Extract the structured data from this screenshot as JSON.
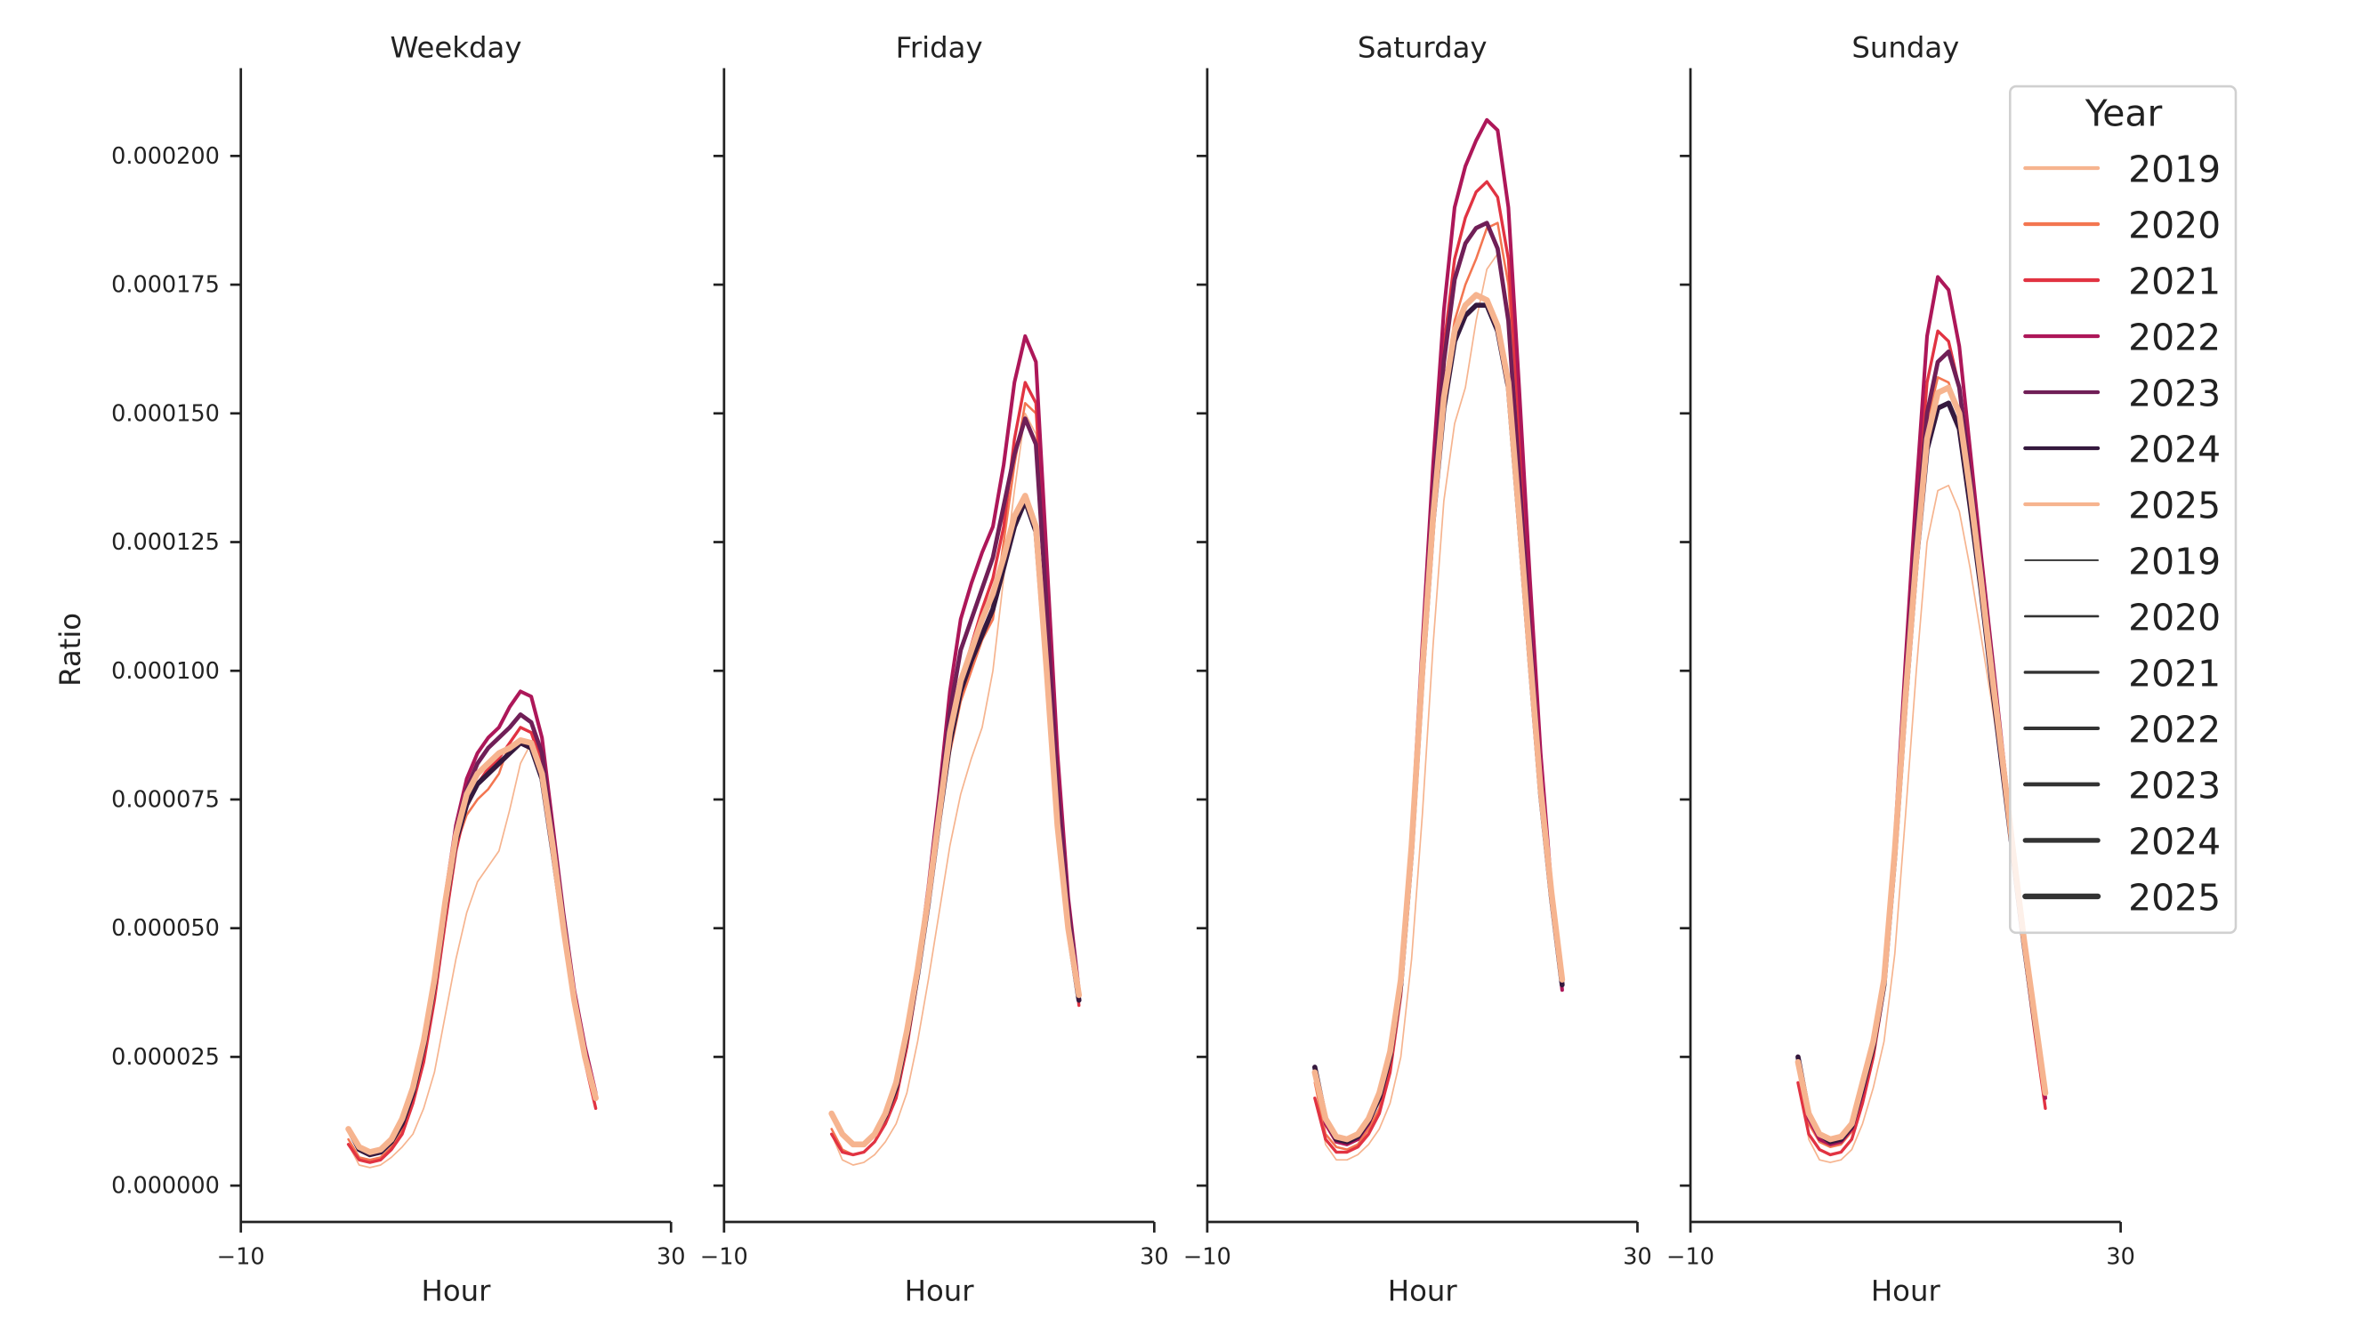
{
  "chart_data": {
    "type": "line",
    "ylabel": "Ratio",
    "xlabel": "Hour",
    "xlim": [
      -10,
      30
    ],
    "ylim": [
      -7e-06,
      0.000218
    ],
    "x_ticks": [
      "−10",
      "30"
    ],
    "y_ticks": [
      "0.000000",
      "0.000025",
      "0.000050",
      "0.000075",
      "0.000100",
      "0.000125",
      "0.000150",
      "0.000175",
      "0.000200"
    ],
    "y_tick_values": [
      0,
      2.5e-05,
      5e-05,
      7.5e-05,
      0.0001,
      0.000125,
      0.00015,
      0.000175,
      0.0002
    ],
    "grid": false,
    "x": [
      0,
      1,
      2,
      3,
      4,
      5,
      6,
      7,
      8,
      9,
      10,
      11,
      12,
      13,
      14,
      15,
      16,
      17,
      18,
      19,
      20,
      21,
      22,
      23
    ],
    "legend": {
      "title": "Year",
      "placement": "top-right",
      "color_entries": [
        "2019",
        "2020",
        "2021",
        "2022",
        "2023",
        "2024",
        "2025"
      ],
      "size_entries": [
        "2019",
        "2020",
        "2021",
        "2022",
        "2023",
        "2024",
        "2025"
      ]
    },
    "colors": {
      "2019": "#f6b48f",
      "2020": "#f37651",
      "2021": "#e13342",
      "2022": "#ad1759",
      "2023": "#701f57",
      "2024": "#35193e",
      "2025": "#f6b48f"
    },
    "size_legend_color": "#333333",
    "panels": [
      {
        "title": "Weekday",
        "series": [
          {
            "name": "2019",
            "values": [
              8e-06,
              4e-06,
              3.5e-06,
              4e-06,
              5.5e-06,
              7.5e-06,
              1e-05,
              1.5e-05,
              2.2e-05,
              3.3e-05,
              4.4e-05,
              5.3e-05,
              5.9e-05,
              6.2e-05,
              6.5e-05,
              7.3e-05,
              8.2e-05,
              8.6e-05,
              8e-05,
              6.5e-05,
              5e-05,
              3.6e-05,
              2.5e-05,
              1.7e-05
            ]
          },
          {
            "name": "2020",
            "values": [
              9e-06,
              5.5e-06,
              5e-06,
              5.5e-06,
              7.5e-06,
              1.1e-05,
              1.7e-05,
              2.6e-05,
              3.8e-05,
              5.3e-05,
              6.6e-05,
              7.2e-05,
              7.5e-05,
              7.7e-05,
              8e-05,
              8.6e-05,
              8.9e-05,
              8.8e-05,
              8.2e-05,
              6.6e-05,
              5e-05,
              3.6e-05,
              2.5e-05,
              1.7e-05
            ]
          },
          {
            "name": "2021",
            "values": [
              8e-06,
              5e-06,
              4.5e-06,
              5e-06,
              7e-06,
              1e-05,
              1.6e-05,
              2.4e-05,
              3.6e-05,
              5.1e-05,
              6.5e-05,
              7.4e-05,
              7.8e-05,
              8.1e-05,
              8.3e-05,
              8.6e-05,
              8.9e-05,
              8.8e-05,
              8.2e-05,
              6.6e-05,
              5e-05,
              3.6e-05,
              2.4e-05,
              1.5e-05
            ]
          },
          {
            "name": "2022",
            "values": [
              1.1e-05,
              7e-06,
              6e-06,
              6.5e-06,
              8.5e-06,
              1.2e-05,
              1.8e-05,
              2.7e-05,
              4e-05,
              5.6e-05,
              7e-05,
              7.9e-05,
              8.4e-05,
              8.7e-05,
              8.9e-05,
              9.3e-05,
              9.6e-05,
              9.5e-05,
              8.7e-05,
              7e-05,
              5.3e-05,
              3.8e-05,
              2.7e-05,
              1.8e-05
            ]
          },
          {
            "name": "2023",
            "values": [
              1.1e-05,
              7e-06,
              6e-06,
              6.5e-06,
              8.5e-06,
              1.2e-05,
              1.8e-05,
              2.7e-05,
              3.9e-05,
              5.5e-05,
              6.9e-05,
              7.7e-05,
              8.2e-05,
              8.5e-05,
              8.7e-05,
              8.9e-05,
              9.15e-05,
              9e-05,
              8.4e-05,
              6.8e-05,
              5.2e-05,
              3.7e-05,
              2.6e-05,
              1.7e-05
            ]
          },
          {
            "name": "2024",
            "values": [
              1.1e-05,
              7e-06,
              6e-06,
              6.5e-06,
              8.5e-06,
              1.2e-05,
              1.8e-05,
              2.7e-05,
              3.9e-05,
              5.4e-05,
              6.7e-05,
              7.4e-05,
              7.8e-05,
              8e-05,
              8.2e-05,
              8.4e-05,
              8.6e-05,
              8.5e-05,
              7.9e-05,
              6.5e-05,
              5e-05,
              3.6e-05,
              2.5e-05,
              1.7e-05
            ]
          },
          {
            "name": "2025",
            "values": [
              1.1e-05,
              7.5e-06,
              6.5e-06,
              7e-06,
              9e-06,
              1.3e-05,
              1.9e-05,
              2.8e-05,
              4e-05,
              5.5e-05,
              6.8e-05,
              7.6e-05,
              8e-05,
              8.2e-05,
              8.4e-05,
              8.5e-05,
              8.65e-05,
              8.6e-05,
              8e-05,
              6.6e-05,
              5e-05,
              3.6e-05,
              2.5e-05,
              1.7e-05
            ]
          }
        ]
      },
      {
        "title": "Friday",
        "series": [
          {
            "name": "2019",
            "values": [
              1e-05,
              5e-06,
              4e-06,
              4.5e-06,
              6e-06,
              8.5e-06,
              1.2e-05,
              1.8e-05,
              2.8e-05,
              4e-05,
              5.3e-05,
              6.6e-05,
              7.6e-05,
              8.3e-05,
              8.9e-05,
              0.0001,
              0.000118,
              0.000135,
              0.00015,
              0.000146,
              0.000112,
              7.8e-05,
              5.3e-05,
              3.7e-05
            ]
          },
          {
            "name": "2020",
            "values": [
              1.1e-05,
              7e-06,
              6e-06,
              6.5e-06,
              8.5e-06,
              1.2e-05,
              1.7e-05,
              2.7e-05,
              4e-05,
              5.5e-05,
              7e-05,
              8.4e-05,
              9.4e-05,
              0.0001,
              0.000106,
              0.00011,
              0.000125,
              0.00014,
              0.000152,
              0.00015,
              0.000116,
              7.9e-05,
              5.4e-05,
              3.7e-05
            ]
          },
          {
            "name": "2021",
            "values": [
              1e-05,
              6.5e-06,
              6e-06,
              6.5e-06,
              8.5e-06,
              1.2e-05,
              1.7e-05,
              2.7e-05,
              4e-05,
              5.5e-05,
              7.2e-05,
              8.8e-05,
              9.8e-05,
              0.000105,
              0.000112,
              0.000118,
              0.000128,
              0.000145,
              0.000156,
              0.000152,
              0.000118,
              8e-05,
              5.4e-05,
              3.5e-05
            ]
          },
          {
            "name": "2022",
            "values": [
              1.4e-05,
              1e-05,
              8e-06,
              8e-06,
              1e-05,
              1.35e-05,
              1.9e-05,
              2.9e-05,
              4.2e-05,
              5.8e-05,
              7.6e-05,
              9.6e-05,
              0.00011,
              0.000117,
              0.000123,
              0.000128,
              0.00014,
              0.000156,
              0.000165,
              0.00016,
              0.000122,
              8.4e-05,
              5.6e-05,
              3.8e-05
            ]
          },
          {
            "name": "2023",
            "values": [
              1.4e-05,
              1e-05,
              8e-06,
              8e-06,
              1e-05,
              1.35e-05,
              1.9e-05,
              2.9e-05,
              4.2e-05,
              5.7e-05,
              7.4e-05,
              9.2e-05,
              0.000104,
              0.00011,
              0.000116,
              0.000122,
              0.000132,
              0.000142,
              0.000149,
              0.000144,
              0.000112,
              7.8e-05,
              5.4e-05,
              3.7e-05
            ]
          },
          {
            "name": "2024",
            "values": [
              1.4e-05,
              1e-05,
              8e-06,
              8e-06,
              1e-05,
              1.35e-05,
              1.9e-05,
              2.9e-05,
              4.1e-05,
              5.5e-05,
              7.1e-05,
              8.6e-05,
              9.6e-05,
              0.000102,
              0.000107,
              0.000112,
              0.00012,
              0.000128,
              0.000133,
              0.000127,
              0.0001,
              7e-05,
              5e-05,
              3.6e-05
            ]
          },
          {
            "name": "2025",
            "values": [
              1.4e-05,
              1e-05,
              8e-06,
              8e-06,
              1e-05,
              1.4e-05,
              2e-05,
              3e-05,
              4.2e-05,
              5.6e-05,
              7.2e-05,
              8.8e-05,
              9.8e-05,
              0.000104,
              0.00011,
              0.000115,
              0.000122,
              0.00013,
              0.000134,
              0.000128,
              0.0001,
              7e-05,
              5e-05,
              3.7e-05
            ]
          }
        ]
      },
      {
        "title": "Saturday",
        "series": [
          {
            "name": "2019",
            "values": [
              2e-05,
              8e-06,
              5e-06,
              5e-06,
              6e-06,
              8e-06,
              1.1e-05,
              1.6e-05,
              2.5e-05,
              4.4e-05,
              7.2e-05,
              0.000105,
              0.000133,
              0.000148,
              0.000155,
              0.000168,
              0.000178,
              0.000181,
              0.00017,
              0.000142,
              0.000108,
              7.8e-05,
              5.6e-05,
              3.9e-05
            ]
          },
          {
            "name": "2020",
            "values": [
              2e-05,
              1e-05,
              7.5e-06,
              7e-06,
              8e-06,
              1.1e-05,
              1.5e-05,
              2.3e-05,
              3.7e-05,
              6.2e-05,
              9.8e-05,
              0.00013,
              0.000155,
              0.000168,
              0.000175,
              0.00018,
              0.000186,
              0.000187,
              0.000175,
              0.000145,
              0.00011,
              8e-05,
              5.7e-05,
              3.9e-05
            ]
          },
          {
            "name": "2021",
            "values": [
              1.7e-05,
              9e-06,
              6.5e-06,
              6.5e-06,
              7.5e-06,
              1e-05,
              1.4e-05,
              2.2e-05,
              3.7e-05,
              6.3e-05,
              0.0001,
              0.000135,
              0.000163,
              0.00018,
              0.000188,
              0.000193,
              0.000195,
              0.000192,
              0.00018,
              0.000148,
              0.000113,
              8.1e-05,
              5.7e-05,
              3.8e-05
            ]
          },
          {
            "name": "2022",
            "values": [
              2.2e-05,
              1.2e-05,
              8.5e-06,
              8e-06,
              9e-06,
              1.2e-05,
              1.7e-05,
              2.5e-05,
              4e-05,
              6.8e-05,
              0.000105,
              0.00014,
              0.00017,
              0.00019,
              0.000198,
              0.000203,
              0.000207,
              0.000205,
              0.00019,
              0.000155,
              0.000118,
              8.4e-05,
              5.8e-05,
              3.8e-05
            ]
          },
          {
            "name": "2023",
            "values": [
              2.3e-05,
              1.3e-05,
              9e-06,
              8.5e-06,
              9.5e-06,
              1.25e-05,
              1.7e-05,
              2.5e-05,
              4e-05,
              6.7e-05,
              0.000102,
              0.000134,
              0.00016,
              0.000176,
              0.000183,
              0.000186,
              0.000187,
              0.000182,
              0.000168,
              0.000138,
              0.000108,
              7.9e-05,
              5.7e-05,
              3.9e-05
            ]
          },
          {
            "name": "2024",
            "values": [
              2.3e-05,
              1.3e-05,
              9e-06,
              8.5e-06,
              9.5e-06,
              1.25e-05,
              1.7e-05,
              2.5e-05,
              3.9e-05,
              6.5e-05,
              9.9e-05,
              0.000129,
              0.000151,
              0.000164,
              0.000169,
              0.000171,
              0.000171,
              0.000166,
              0.000155,
              0.000129,
              0.000102,
              7.6e-05,
              5.6e-05,
              3.9e-05
            ]
          },
          {
            "name": "2025",
            "values": [
              2.2e-05,
              1.3e-05,
              9.5e-06,
              9e-06,
              1e-05,
              1.3e-05,
              1.8e-05,
              2.6e-05,
              4e-05,
              6.6e-05,
              0.0001,
              0.00013,
              0.000153,
              0.000166,
              0.000171,
              0.000173,
              0.000172,
              0.000167,
              0.000156,
              0.00013,
              0.000103,
              7.7e-05,
              5.7e-05,
              4e-05
            ]
          }
        ]
      },
      {
        "title": "Sunday",
        "series": [
          {
            "name": "2019",
            "values": [
              2.3e-05,
              9e-06,
              5e-06,
              4.5e-06,
              5e-06,
              7e-06,
              1.2e-05,
              1.9e-05,
              2.8e-05,
              4.5e-05,
              7.2e-05,
              0.0001,
              0.000125,
              0.000135,
              0.000136,
              0.000131,
              0.00012,
              0.000107,
              9.4e-05,
              8e-05,
              6.4e-05,
              4.8e-05,
              3.3e-05,
              1.8e-05
            ]
          },
          {
            "name": "2020",
            "values": [
              2.4e-05,
              1.2e-05,
              8.5e-06,
              7.5e-06,
              8e-06,
              1.05e-05,
              1.8e-05,
              2.7e-05,
              3.9e-05,
              6.5e-05,
              9.6e-05,
              0.000125,
              0.000148,
              0.000157,
              0.000156,
              0.00015,
              0.000135,
              0.000118,
              0.0001,
              8.3e-05,
              6.5e-05,
              4.8e-05,
              3.3e-05,
              1.8e-05
            ]
          },
          {
            "name": "2021",
            "values": [
              2e-05,
              1e-05,
              7e-06,
              6e-06,
              6.5e-06,
              9e-06,
              1.6e-05,
              2.5e-05,
              3.8e-05,
              6.4e-05,
              9.8e-05,
              0.00013,
              0.000156,
              0.000166,
              0.000164,
              0.000155,
              0.000137,
              0.000119,
              0.0001,
              8.2e-05,
              6.4e-05,
              4.6e-05,
              3e-05,
              1.5e-05
            ]
          },
          {
            "name": "2022",
            "values": [
              2.4e-05,
              1.3e-05,
              9e-06,
              8e-06,
              8.5e-06,
              1.1e-05,
              1.8e-05,
              2.7e-05,
              4e-05,
              6.7e-05,
              0.000102,
              0.000135,
              0.000165,
              0.0001765,
              0.000174,
              0.000163,
              0.000143,
              0.000123,
              0.000104,
              8.5e-05,
              6.6e-05,
              4.8e-05,
              3.2e-05,
              1.7e-05
            ]
          },
          {
            "name": "2023",
            "values": [
              2.5e-05,
              1.4e-05,
              1e-05,
              8.5e-06,
              9e-06,
              1.15e-05,
              1.9e-05,
              2.7e-05,
              4e-05,
              6.6e-05,
              9.8e-05,
              0.000127,
              0.00015,
              0.00016,
              0.000162,
              0.000155,
              0.000138,
              0.00012,
              0.000102,
              8.4e-05,
              6.6e-05,
              4.8e-05,
              3.3e-05,
              1.8e-05
            ]
          },
          {
            "name": "2024",
            "values": [
              2.5e-05,
              1.4e-05,
              1e-05,
              8.5e-06,
              9e-06,
              1.15e-05,
              1.9e-05,
              2.7e-05,
              3.9e-05,
              6.4e-05,
              9.4e-05,
              0.000121,
              0.000143,
              0.000151,
              0.000152,
              0.000147,
              0.000132,
              0.000116,
              9.8e-05,
              8.1e-05,
              6.4e-05,
              4.7e-05,
              3.2e-05,
              1.8e-05
            ]
          },
          {
            "name": "2025",
            "values": [
              2.4e-05,
              1.4e-05,
              1e-05,
              9e-06,
              9.5e-06,
              1.2e-05,
              2e-05,
              2.8e-05,
              4e-05,
              6.5e-05,
              9.5e-05,
              0.000122,
              0.000145,
              0.000154,
              0.000155,
              0.00015,
              0.000135,
              0.000118,
              0.0001,
              8.3e-05,
              6.5e-05,
              4.8e-05,
              3.3e-05,
              1.8e-05
            ]
          }
        ]
      }
    ]
  }
}
